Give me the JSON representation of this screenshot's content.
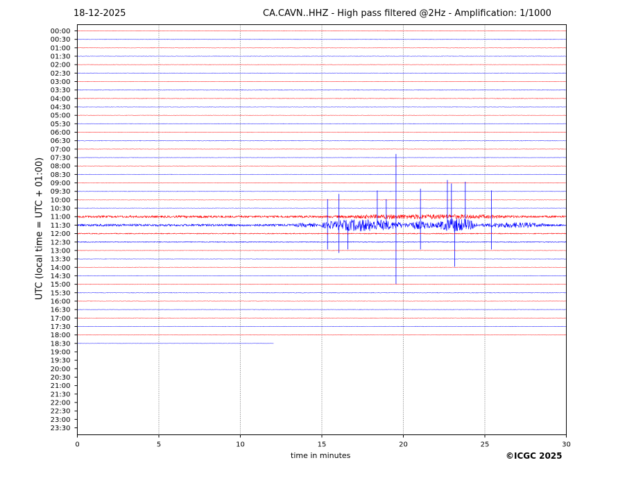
{
  "header": {
    "date": "18-12-2025",
    "title": "CA.CAVN..HHZ - High pass filtered @2Hz - Amplification: 1/1000"
  },
  "footer": {
    "copyright": "©ICGC 2025"
  },
  "colors": {
    "red": "#ff0000",
    "blue": "#0000ff"
  },
  "chart_data": {
    "type": "line",
    "title": "CA.CAVN..HHZ - High pass filtered @2Hz - Amplification: 1/1000",
    "xlabel": "time in minutes",
    "ylabel": "UTC (local time = UTC + 01:00)",
    "xlim": [
      0,
      30
    ],
    "xticks": [
      0,
      5,
      10,
      15,
      20,
      25,
      30
    ],
    "grid": "vertical dotted at x ticks",
    "rows": [
      "00:00",
      "00:30",
      "01:00",
      "01:30",
      "02:00",
      "02:30",
      "03:00",
      "03:30",
      "04:00",
      "04:30",
      "05:00",
      "05:30",
      "06:00",
      "06:30",
      "07:00",
      "07:30",
      "08:00",
      "08:30",
      "09:00",
      "09:30",
      "10:00",
      "10:30",
      "11:00",
      "11:30",
      "12:00",
      "12:30",
      "13:00",
      "13:30",
      "14:00",
      "14:30",
      "15:00",
      "15:30",
      "16:00",
      "16:30",
      "17:00",
      "17:30",
      "18:00",
      "18:30",
      "19:00",
      "19:30",
      "20:00",
      "20:30",
      "21:00",
      "21:30",
      "22:00",
      "22:30",
      "23:00",
      "23:30"
    ],
    "series": [
      {
        "row": "00:00",
        "color": "red",
        "end": 30,
        "amplitude": 0.3
      },
      {
        "row": "00:30",
        "color": "blue",
        "end": 30,
        "amplitude": 0.3
      },
      {
        "row": "01:00",
        "color": "red",
        "end": 30,
        "amplitude": 0.3
      },
      {
        "row": "01:30",
        "color": "blue",
        "end": 30,
        "amplitude": 0.3
      },
      {
        "row": "02:00",
        "color": "red",
        "end": 30,
        "amplitude": 0.3
      },
      {
        "row": "02:30",
        "color": "blue",
        "end": 30,
        "amplitude": 0.3
      },
      {
        "row": "03:00",
        "color": "red",
        "end": 30,
        "amplitude": 0.3
      },
      {
        "row": "03:30",
        "color": "blue",
        "end": 30,
        "amplitude": 0.4
      },
      {
        "row": "04:00",
        "color": "red",
        "end": 30,
        "amplitude": 0.4
      },
      {
        "row": "04:30",
        "color": "blue",
        "end": 30,
        "amplitude": 0.3
      },
      {
        "row": "05:00",
        "color": "red",
        "end": 30,
        "amplitude": 0.3
      },
      {
        "row": "05:30",
        "color": "blue",
        "end": 30,
        "amplitude": 0.3
      },
      {
        "row": "06:00",
        "color": "red",
        "end": 30,
        "amplitude": 0.3
      },
      {
        "row": "06:30",
        "color": "blue",
        "end": 30,
        "amplitude": 0.4
      },
      {
        "row": "07:00",
        "color": "red",
        "end": 30,
        "amplitude": 0.3
      },
      {
        "row": "07:30",
        "color": "blue",
        "end": 30,
        "amplitude": 0.3
      },
      {
        "row": "08:00",
        "color": "red",
        "end": 30,
        "amplitude": 0.3
      },
      {
        "row": "08:30",
        "color": "blue",
        "end": 30,
        "amplitude": 0.3
      },
      {
        "row": "09:00",
        "color": "red",
        "end": 30,
        "amplitude": 0.3
      },
      {
        "row": "09:30",
        "color": "blue",
        "end": 30,
        "amplitude": 0.3
      },
      {
        "row": "10:00",
        "color": "red",
        "end": 30,
        "amplitude": 0.3
      },
      {
        "row": "10:30",
        "color": "blue",
        "end": 30,
        "amplitude": 0.3
      },
      {
        "row": "11:00",
        "color": "red",
        "end": 30,
        "amplitude": 1.5,
        "bursts": [
          [
            6.3,
            9.5,
            2.0
          ],
          [
            15.0,
            27.5,
            3.5
          ]
        ]
      },
      {
        "row": "11:30",
        "color": "blue",
        "end": 30,
        "amplitude": 1.6,
        "bursts": [
          [
            13.0,
            15.0,
            3.0
          ],
          [
            15.0,
            20.0,
            9.0
          ],
          [
            20.0,
            22.0,
            6.0
          ],
          [
            22.0,
            24.5,
            10.0
          ],
          [
            24.5,
            29.0,
            4.0
          ]
        ],
        "spikes": [
          [
            15.35,
            15
          ],
          [
            15.35,
            -14
          ],
          [
            16.05,
            18
          ],
          [
            16.05,
            -16
          ],
          [
            16.6,
            -14
          ],
          [
            18.4,
            20
          ],
          [
            18.95,
            15
          ],
          [
            19.55,
            41
          ],
          [
            19.55,
            -34
          ],
          [
            21.05,
            21
          ],
          [
            21.05,
            -14
          ],
          [
            22.7,
            26
          ],
          [
            22.95,
            24
          ],
          [
            23.15,
            -24
          ],
          [
            23.8,
            25
          ],
          [
            25.4,
            20
          ],
          [
            25.4,
            -14
          ]
        ]
      },
      {
        "row": "12:00",
        "color": "red",
        "end": 30,
        "amplitude": 0.6
      },
      {
        "row": "12:30",
        "color": "blue",
        "end": 30,
        "amplitude": 0.5
      },
      {
        "row": "13:00",
        "color": "red",
        "end": 30,
        "amplitude": 0.3
      },
      {
        "row": "13:30",
        "color": "blue",
        "end": 30,
        "amplitude": 0.3
      },
      {
        "row": "14:00",
        "color": "red",
        "end": 30,
        "amplitude": 0.3
      },
      {
        "row": "14:30",
        "color": "blue",
        "end": 30,
        "amplitude": 0.3
      },
      {
        "row": "15:00",
        "color": "red",
        "end": 30,
        "amplitude": 0.3
      },
      {
        "row": "15:30",
        "color": "blue",
        "end": 30,
        "amplitude": 0.4
      },
      {
        "row": "16:00",
        "color": "red",
        "end": 30,
        "amplitude": 0.3
      },
      {
        "row": "16:30",
        "color": "blue",
        "end": 30,
        "amplitude": 0.3
      },
      {
        "row": "17:00",
        "color": "red",
        "end": 30,
        "amplitude": 0.3
      },
      {
        "row": "17:30",
        "color": "blue",
        "end": 30,
        "amplitude": 0.3
      },
      {
        "row": "18:00",
        "color": "red",
        "end": 30,
        "amplitude": 0.3
      },
      {
        "row": "18:30",
        "color": "blue",
        "end": 12.05,
        "amplitude": 0.2
      }
    ]
  }
}
